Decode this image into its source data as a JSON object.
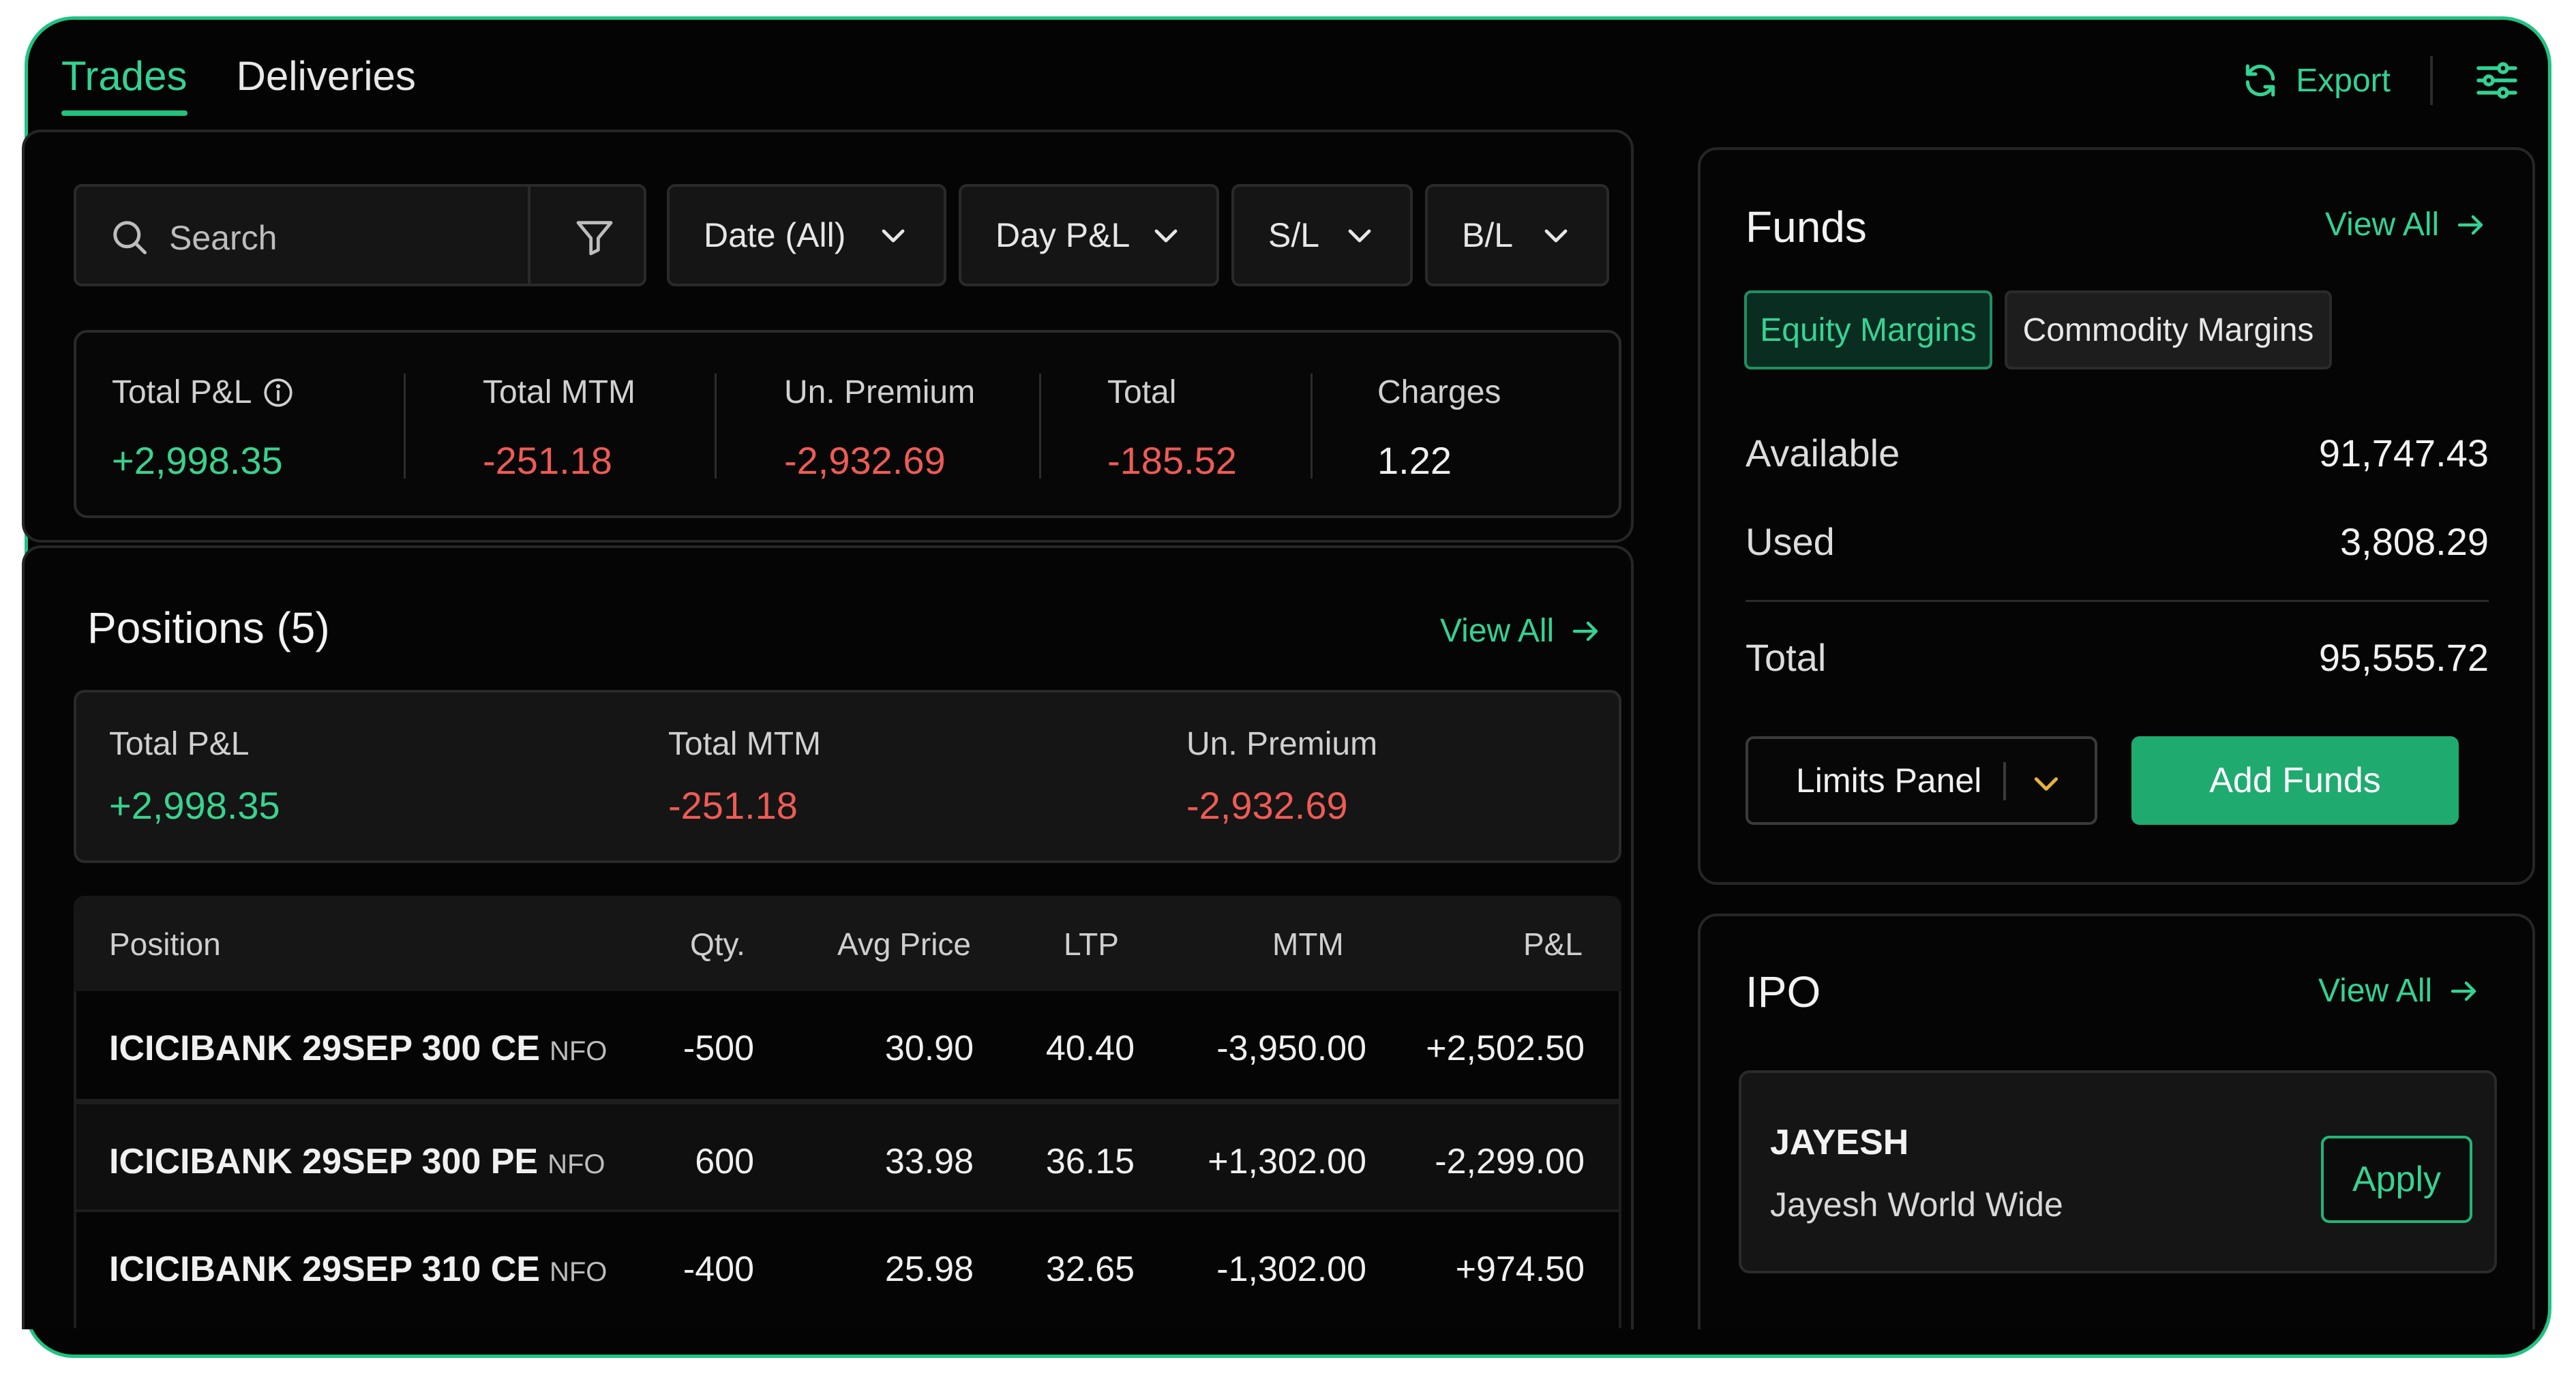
{
  "tabs": [
    {
      "label": "Trades",
      "active": true
    },
    {
      "label": "Deliveries",
      "active": false
    }
  ],
  "toolbar": {
    "export_label": "Export"
  },
  "filters": {
    "search_placeholder": "Search",
    "dropdowns": [
      "Date (All)",
      "Day P&L",
      "S/L",
      "B/L"
    ]
  },
  "summary": [
    {
      "label": "Total P&L",
      "value": "+2,998.35",
      "tone": "green",
      "info": true
    },
    {
      "label": "Total MTM",
      "value": "-251.18",
      "tone": "red"
    },
    {
      "label": "Un. Premium",
      "value": "-2,932.69",
      "tone": "red"
    },
    {
      "label": "Total",
      "value": "-185.52",
      "tone": "red"
    },
    {
      "label": "Charges",
      "value": "1.22",
      "tone": "white"
    }
  ],
  "positions": {
    "title": "Positions (5)",
    "view_all": "View All",
    "summary": [
      {
        "label": "Total P&L",
        "value": "+2,998.35",
        "tone": "green"
      },
      {
        "label": "Total MTM",
        "value": "-251.18",
        "tone": "red"
      },
      {
        "label": "Un. Premium",
        "value": "-2,932.69",
        "tone": "red"
      }
    ],
    "columns": [
      "Position",
      "Qty.",
      "Avg Price",
      "LTP",
      "MTM",
      "P&L"
    ],
    "rows": [
      {
        "name": "ICICIBANK 29SEP 300 CE",
        "exchange": "NFO",
        "qty": "-500",
        "qty_tone": "red",
        "avg": "30.90",
        "ltp": "40.40",
        "mtm": "-3,950.00",
        "mtm_tone": "red",
        "pnl": "+2,502.50",
        "pnl_tone": "green"
      },
      {
        "name": "ICICIBANK 29SEP 300 PE",
        "exchange": "NFO",
        "qty": "600",
        "qty_tone": "green",
        "avg": "33.98",
        "ltp": "36.15",
        "mtm": "+1,302.00",
        "mtm_tone": "green",
        "pnl": "-2,299.00",
        "pnl_tone": "red"
      },
      {
        "name": "ICICIBANK 29SEP 310 CE",
        "exchange": "NFO",
        "qty": "-400",
        "qty_tone": "red",
        "avg": "25.98",
        "ltp": "32.65",
        "mtm": "-1,302.00",
        "mtm_tone": "red",
        "pnl": "+974.50",
        "pnl_tone": "green"
      }
    ]
  },
  "funds": {
    "title": "Funds",
    "view_all": "View All",
    "tabs": [
      "Equity Margins",
      "Commodity Margins"
    ],
    "available_label": "Available",
    "available_value": "91,747.43",
    "used_label": "Used",
    "used_value": "3,808.29",
    "total_label": "Total",
    "total_value": "95,555.72",
    "limits_label": "Limits Panel",
    "add_funds_label": "Add Funds"
  },
  "ipo": {
    "title": "IPO",
    "view_all": "View All",
    "name": "JAYESH",
    "subtitle": "Jayesh World Wide",
    "apply_label": "Apply"
  },
  "colors": {
    "accent": "#32d394",
    "negative": "#ef5b55",
    "background": "#040404",
    "button": "#1fab6f"
  }
}
